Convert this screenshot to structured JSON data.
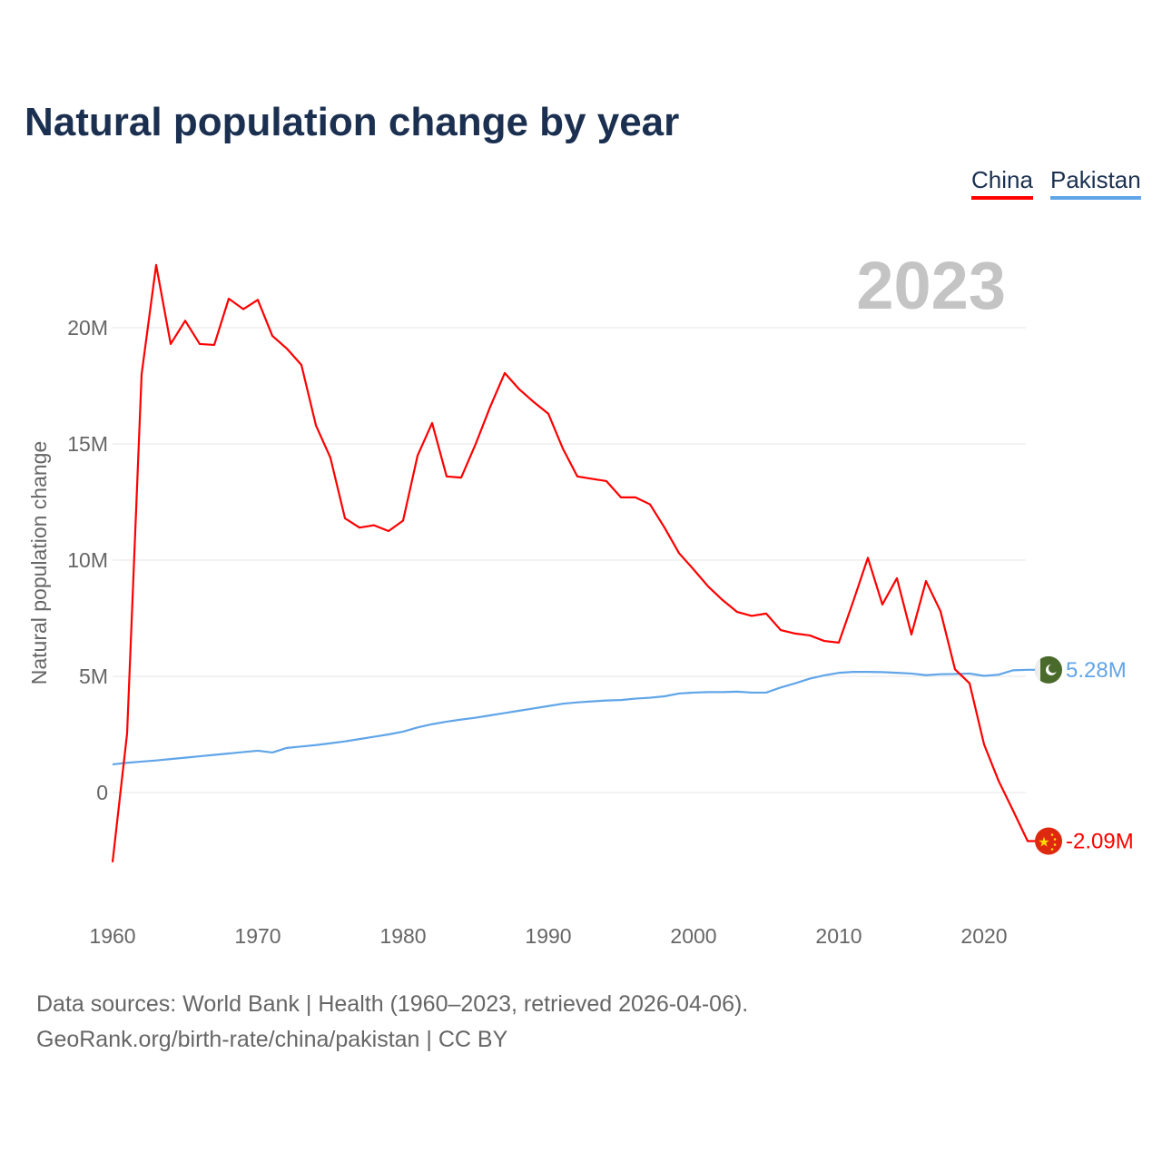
{
  "title": "Natural population change by year",
  "footer": {
    "line1": "Data sources: World Bank | Health (1960–2023, retrieved 2026-04-06).",
    "line2": "GeoRank.org/birth-rate/china/pakistan | CC BY"
  },
  "chart_data": {
    "type": "line",
    "title": "Natural population change by year",
    "xlabel": "",
    "ylabel": "Natural population change",
    "year_label": "2023",
    "xlim": [
      1960,
      2023
    ],
    "ylim": [
      -3.5,
      23
    ],
    "x_ticks": [
      "1960",
      "1970",
      "1980",
      "1990",
      "2000",
      "2010",
      "2020"
    ],
    "y_ticks": [
      {
        "value": 0,
        "label": "0"
      },
      {
        "value": 5,
        "label": "5M"
      },
      {
        "value": 10,
        "label": "10M"
      },
      {
        "value": 15,
        "label": "15M"
      },
      {
        "value": 20,
        "label": "20M"
      }
    ],
    "grid": true,
    "legend_position": "top-right",
    "units": "millions",
    "series": [
      {
        "name": "China",
        "color": "#ff0000",
        "end_label": "-2.09M",
        "flag": "china-flag-icon",
        "values": [
          -3.0,
          2.54,
          18.0,
          22.7,
          19.3,
          20.3,
          19.3,
          19.26,
          21.25,
          20.8,
          21.2,
          19.65,
          19.1,
          18.4,
          15.8,
          14.4,
          11.8,
          11.4,
          11.5,
          11.25,
          11.7,
          14.5,
          15.9,
          13.6,
          13.55,
          15.0,
          16.6,
          18.05,
          17.35,
          16.8,
          16.3,
          14.8,
          13.6,
          13.5,
          13.4,
          12.7,
          12.7,
          12.4,
          11.4,
          10.3,
          9.6,
          8.87,
          8.28,
          7.77,
          7.6,
          7.7,
          6.99,
          6.84,
          6.76,
          6.52,
          6.45,
          8.24,
          10.1,
          8.09,
          9.22,
          6.8,
          9.1,
          7.8,
          5.3,
          4.7,
          2.07,
          0.5,
          -0.78,
          -2.09
        ]
      },
      {
        "name": "Pakistan",
        "color": "#60a5e8",
        "end_label": "5.28M",
        "flag": "pakistan-flag-icon",
        "values": [
          1.21,
          1.28,
          1.33,
          1.38,
          1.44,
          1.5,
          1.56,
          1.62,
          1.68,
          1.74,
          1.8,
          1.72,
          1.92,
          1.98,
          2.04,
          2.12,
          2.2,
          2.3,
          2.4,
          2.5,
          2.62,
          2.8,
          2.94,
          3.05,
          3.14,
          3.22,
          3.32,
          3.42,
          3.52,
          3.62,
          3.72,
          3.82,
          3.88,
          3.92,
          3.96,
          3.98,
          4.04,
          4.08,
          4.14,
          4.26,
          4.3,
          4.32,
          4.32,
          4.34,
          4.3,
          4.3,
          4.52,
          4.7,
          4.9,
          5.04,
          5.15,
          5.19,
          5.19,
          5.18,
          5.15,
          5.12,
          5.05,
          5.09,
          5.1,
          5.12,
          5.02,
          5.07,
          5.26,
          5.28
        ]
      }
    ]
  }
}
